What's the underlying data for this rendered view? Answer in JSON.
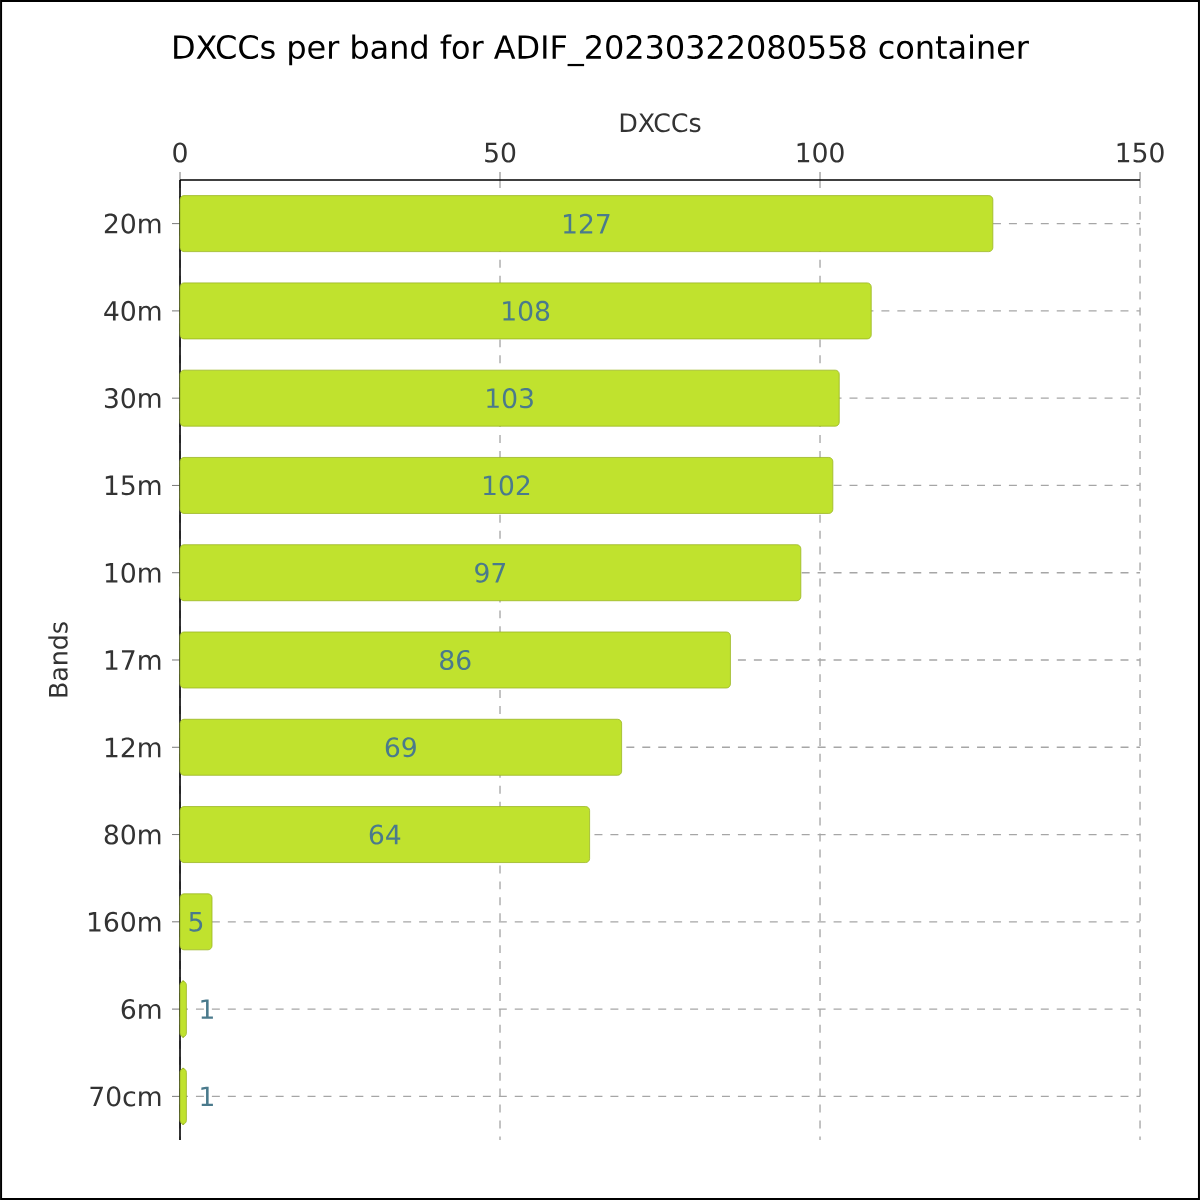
{
  "chart_data": {
    "type": "bar",
    "orientation": "horizontal",
    "title": "DXCCs per band for ADIF_20230322080558 container",
    "xlabel": "DXCCs",
    "ylabel": "Bands",
    "categories": [
      "20m",
      "40m",
      "30m",
      "15m",
      "10m",
      "17m",
      "12m",
      "80m",
      "160m",
      "6m",
      "70cm"
    ],
    "values": [
      127,
      108,
      103,
      102,
      97,
      86,
      69,
      64,
      5,
      1,
      1
    ],
    "color": "#c0e22e",
    "xlim": [
      0,
      150
    ],
    "xticks": [
      0,
      50,
      100,
      150
    ],
    "grid": true,
    "data_labels": true
  }
}
